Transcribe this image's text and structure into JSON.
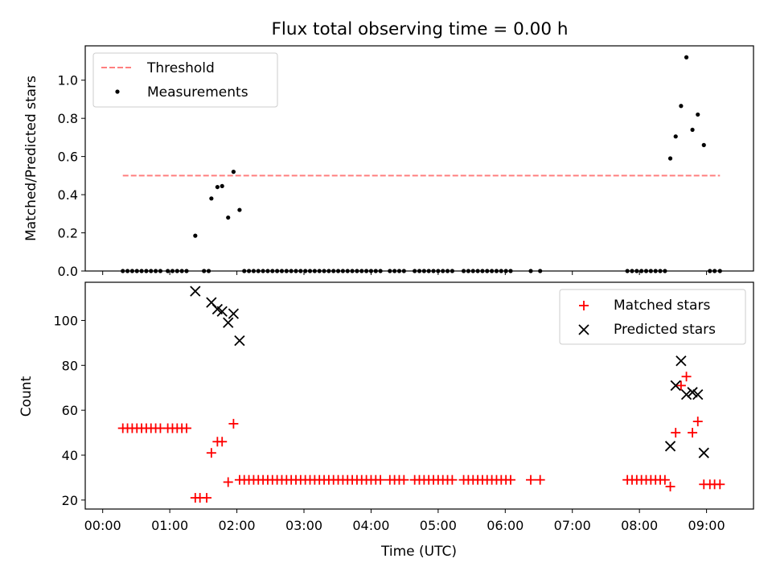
{
  "colors": {
    "threshold": "#ff7f7f",
    "measurement": "#000000",
    "matched": "#ff0000",
    "predicted": "#000000",
    "axes": "#000000"
  },
  "chart_data": [
    {
      "type": "scatter",
      "title": "Flux total observing time = 0.00 h",
      "xlabel": "",
      "ylabel": "Matched/Predicted stars",
      "xlim": [
        -0.26,
        9.7
      ],
      "ylim": [
        0.0,
        1.18
      ],
      "yticks": [
        0.0,
        0.2,
        0.4,
        0.6,
        0.8,
        1.0
      ],
      "ytick_labels": [
        "0.0",
        "0.2",
        "0.4",
        "0.6",
        "0.8",
        "1.0"
      ],
      "legend_position": "upper-left",
      "threshold": {
        "name": "Threshold",
        "value": 0.5,
        "x_range": [
          0.3,
          9.2
        ]
      },
      "series": [
        {
          "name": "Measurements",
          "marker": "dot",
          "x": [
            0.3,
            0.37,
            0.44,
            0.51,
            0.58,
            0.65,
            0.72,
            0.79,
            0.86,
            0.97,
            1.04,
            1.11,
            1.18,
            1.25,
            1.38,
            1.51,
            1.58,
            1.62,
            1.71,
            1.78,
            1.87,
            1.95,
            2.04,
            2.11,
            2.18,
            2.25,
            2.32,
            2.39,
            2.46,
            2.53,
            2.6,
            2.67,
            2.74,
            2.81,
            2.88,
            2.95,
            3.02,
            3.09,
            3.16,
            3.23,
            3.3,
            3.37,
            3.44,
            3.51,
            3.58,
            3.65,
            3.72,
            3.79,
            3.86,
            3.93,
            4.0,
            4.07,
            4.14,
            4.28,
            4.35,
            4.42,
            4.49,
            4.65,
            4.72,
            4.79,
            4.86,
            4.93,
            5.0,
            5.07,
            5.14,
            5.21,
            5.38,
            5.45,
            5.52,
            5.59,
            5.66,
            5.73,
            5.8,
            5.87,
            5.94,
            6.01,
            6.08,
            6.38,
            6.52,
            7.82,
            7.89,
            7.96,
            8.03,
            8.1,
            8.17,
            8.24,
            8.31,
            8.38,
            8.46,
            8.54,
            8.62,
            8.7,
            8.79,
            8.87,
            8.96,
            9.05,
            9.12,
            9.2
          ],
          "y": [
            0,
            0,
            0,
            0,
            0,
            0,
            0,
            0,
            0,
            0,
            0,
            0,
            0,
            0,
            0.185,
            0,
            0,
            0.38,
            0.44,
            0.445,
            0.28,
            0.52,
            0.32,
            0,
            0,
            0,
            0,
            0,
            0,
            0,
            0,
            0,
            0,
            0,
            0,
            0,
            0,
            0,
            0,
            0,
            0,
            0,
            0,
            0,
            0,
            0,
            0,
            0,
            0,
            0,
            0,
            0,
            0,
            0,
            0,
            0,
            0,
            0,
            0,
            0,
            0,
            0,
            0,
            0,
            0,
            0,
            0,
            0,
            0,
            0,
            0,
            0,
            0,
            0,
            0,
            0,
            0,
            0,
            0,
            0,
            0,
            0,
            0,
            0,
            0,
            0,
            0,
            0,
            0.59,
            0.705,
            0.865,
            1.12,
            0.74,
            0.82,
            0.66,
            0,
            0,
            0
          ]
        }
      ]
    },
    {
      "type": "scatter",
      "xlabel": "Time (UTC)",
      "ylabel": "Count",
      "xlim": [
        -0.26,
        9.7
      ],
      "ylim": [
        16,
        117
      ],
      "xticks": [
        0,
        1,
        2,
        3,
        4,
        5,
        6,
        7,
        8,
        9
      ],
      "xtick_labels": [
        "00:00",
        "01:00",
        "02:00",
        "03:00",
        "04:00",
        "05:00",
        "06:00",
        "07:00",
        "08:00",
        "09:00"
      ],
      "yticks": [
        20,
        40,
        60,
        80,
        100
      ],
      "ytick_labels": [
        "20",
        "40",
        "60",
        "80",
        "100"
      ],
      "legend_position": "upper-right",
      "series": [
        {
          "name": "Matched stars",
          "marker": "plus",
          "x": [
            0.3,
            0.37,
            0.44,
            0.51,
            0.58,
            0.65,
            0.72,
            0.79,
            0.86,
            0.97,
            1.04,
            1.11,
            1.18,
            1.25,
            1.38,
            1.45,
            1.55,
            1.62,
            1.71,
            1.78,
            1.87,
            1.95,
            2.04,
            2.11,
            2.18,
            2.25,
            2.32,
            2.39,
            2.46,
            2.53,
            2.6,
            2.67,
            2.74,
            2.81,
            2.88,
            2.95,
            3.02,
            3.09,
            3.16,
            3.23,
            3.3,
            3.37,
            3.44,
            3.51,
            3.58,
            3.65,
            3.72,
            3.79,
            3.86,
            3.93,
            4.0,
            4.07,
            4.14,
            4.28,
            4.35,
            4.42,
            4.49,
            4.65,
            4.72,
            4.79,
            4.86,
            4.93,
            5.0,
            5.07,
            5.14,
            5.21,
            5.38,
            5.45,
            5.52,
            5.59,
            5.66,
            5.73,
            5.8,
            5.87,
            5.94,
            6.01,
            6.08,
            6.38,
            6.52,
            7.82,
            7.89,
            7.96,
            8.03,
            8.1,
            8.17,
            8.24,
            8.31,
            8.38,
            8.46,
            8.54,
            8.62,
            8.7,
            8.79,
            8.87,
            8.96,
            9.05,
            9.12,
            9.2
          ],
          "y": [
            52,
            52,
            52,
            52,
            52,
            52,
            52,
            52,
            52,
            52,
            52,
            52,
            52,
            52,
            21,
            21,
            21,
            41,
            46,
            46,
            28,
            54,
            29,
            29,
            29,
            29,
            29,
            29,
            29,
            29,
            29,
            29,
            29,
            29,
            29,
            29,
            29,
            29,
            29,
            29,
            29,
            29,
            29,
            29,
            29,
            29,
            29,
            29,
            29,
            29,
            29,
            29,
            29,
            29,
            29,
            29,
            29,
            29,
            29,
            29,
            29,
            29,
            29,
            29,
            29,
            29,
            29,
            29,
            29,
            29,
            29,
            29,
            29,
            29,
            29,
            29,
            29,
            29,
            29,
            29,
            29,
            29,
            29,
            29,
            29,
            29,
            29,
            29,
            26,
            50,
            71,
            75,
            50,
            55,
            27,
            27,
            27,
            27
          ]
        },
        {
          "name": "Predicted stars",
          "marker": "x",
          "x": [
            1.38,
            1.62,
            1.71,
            1.78,
            1.87,
            1.95,
            2.04,
            8.46,
            8.54,
            8.62,
            8.7,
            8.79,
            8.87,
            8.96
          ],
          "y": [
            113,
            108,
            105,
            104,
            99,
            103,
            91,
            44,
            71,
            82,
            67,
            68,
            67,
            41
          ]
        }
      ]
    }
  ]
}
